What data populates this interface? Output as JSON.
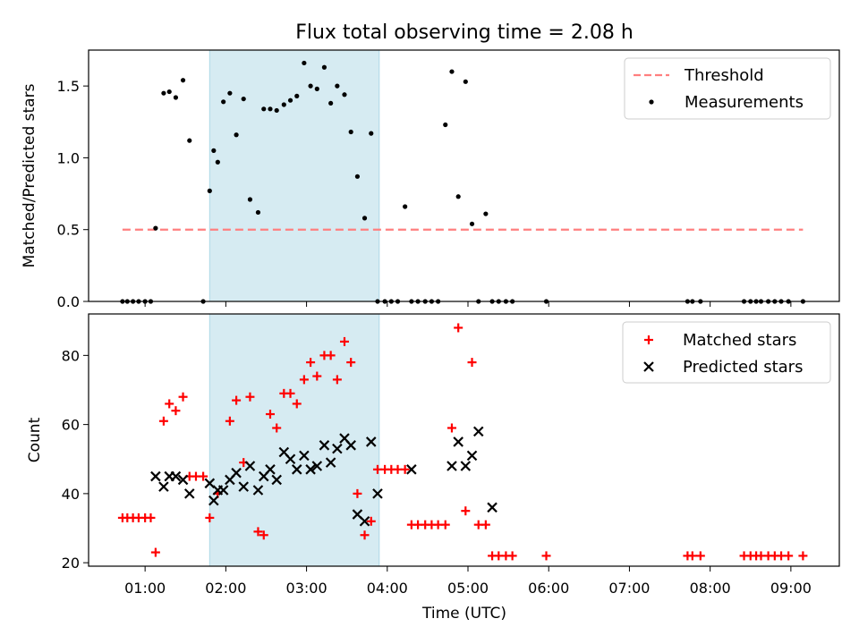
{
  "chart_data": [
    {
      "type": "scatter",
      "title": "Flux total observing time = 2.08 h",
      "xlabel": "",
      "ylabel": "Matched/Predicted stars",
      "xlim": [
        0.3,
        9.6
      ],
      "ylim": [
        0,
        1.75
      ],
      "yticks": [
        0.0,
        0.5,
        1.0,
        1.5
      ],
      "yticklabels": [
        "0.0",
        "0.5",
        "1.0",
        "1.5"
      ],
      "xticks": [
        1,
        2,
        3,
        4,
        5,
        6,
        7,
        8,
        9
      ],
      "shaded_interval": [
        1.8,
        3.9
      ],
      "shade_color": "#add8e6",
      "legend_position": "top-right",
      "threshold": {
        "name": "Threshold",
        "value": 0.5,
        "x": [
          0.72,
          9.15
        ],
        "color": "#ff7f7f"
      },
      "series": [
        {
          "name": "Measurements",
          "color": "#000000",
          "x": [
            0.72,
            0.78,
            0.85,
            0.92,
            1.0,
            1.07,
            1.13,
            1.23,
            1.3,
            1.38,
            1.47,
            1.55,
            1.72,
            1.8,
            1.85,
            1.9,
            1.97,
            2.05,
            2.13,
            2.22,
            2.3,
            2.4,
            2.47,
            2.55,
            2.63,
            2.72,
            2.8,
            2.88,
            2.97,
            3.05,
            3.13,
            3.22,
            3.3,
            3.38,
            3.47,
            3.55,
            3.63,
            3.72,
            3.8,
            3.88,
            3.97,
            4.05,
            4.13,
            4.22,
            4.3,
            4.38,
            4.47,
            4.55,
            4.63,
            4.72,
            4.8,
            4.88,
            4.97,
            5.05,
            5.13,
            5.22,
            5.3,
            5.38,
            5.47,
            5.55,
            5.97,
            7.72,
            7.78,
            7.88,
            8.42,
            8.5,
            8.57,
            8.63,
            8.72,
            8.8,
            8.88,
            8.97,
            9.15
          ],
          "y": [
            0,
            0,
            0,
            0,
            0,
            0,
            0.51,
            1.45,
            1.46,
            1.42,
            1.54,
            1.12,
            0,
            0.77,
            1.05,
            0.97,
            1.39,
            1.45,
            1.16,
            1.41,
            0.71,
            0.62,
            1.34,
            1.34,
            1.33,
            1.37,
            1.4,
            1.43,
            1.66,
            1.5,
            1.48,
            1.63,
            1.38,
            1.5,
            1.44,
            1.18,
            0.87,
            0.58,
            1.17,
            0,
            0,
            0,
            0,
            0.66,
            0,
            0,
            0,
            0,
            0,
            1.23,
            1.6,
            0.73,
            1.53,
            0.54,
            0,
            0.61,
            0,
            0,
            0,
            0,
            0,
            0,
            0,
            0,
            0,
            0,
            0,
            0,
            0,
            0,
            0,
            0,
            0
          ]
        }
      ]
    },
    {
      "type": "scatter",
      "title": "",
      "xlabel": "Time (UTC)",
      "ylabel": "Count",
      "xlim": [
        0.3,
        9.6
      ],
      "ylim": [
        19,
        92
      ],
      "yticks": [
        20,
        40,
        60,
        80
      ],
      "xticks": [
        1,
        2,
        3,
        4,
        5,
        6,
        7,
        8,
        9
      ],
      "xticklabels": [
        "01:00",
        "02:00",
        "03:00",
        "04:00",
        "05:00",
        "06:00",
        "07:00",
        "08:00",
        "09:00"
      ],
      "shaded_interval": [
        1.8,
        3.9
      ],
      "shade_color": "#add8e6",
      "legend_position": "top-right",
      "series": [
        {
          "name": "Matched stars",
          "color": "#ff0000",
          "marker": "plus",
          "x": [
            0.72,
            0.78,
            0.85,
            0.92,
            1.0,
            1.07,
            1.13,
            1.23,
            1.3,
            1.38,
            1.47,
            1.55,
            1.63,
            1.72,
            1.8,
            1.9,
            2.05,
            2.13,
            2.22,
            2.3,
            2.4,
            2.47,
            2.55,
            2.63,
            2.72,
            2.8,
            2.88,
            2.97,
            3.05,
            3.13,
            3.22,
            3.3,
            3.38,
            3.47,
            3.55,
            3.63,
            3.72,
            3.8,
            3.88,
            3.97,
            4.05,
            4.13,
            4.22,
            4.3,
            4.38,
            4.47,
            4.55,
            4.63,
            4.72,
            4.8,
            4.88,
            4.97,
            5.05,
            5.13,
            5.22,
            5.3,
            5.38,
            5.47,
            5.55,
            5.97,
            7.72,
            7.78,
            7.88,
            8.42,
            8.5,
            8.57,
            8.63,
            8.72,
            8.8,
            8.88,
            8.97,
            9.15
          ],
          "y": [
            33,
            33,
            33,
            33,
            33,
            33,
            23,
            61,
            66,
            64,
            68,
            45,
            45,
            45,
            33,
            40,
            61,
            67,
            49,
            68,
            29,
            28,
            63,
            59,
            69,
            69,
            66,
            73,
            78,
            74,
            80,
            80,
            73,
            84,
            78,
            40,
            28,
            32,
            47,
            47,
            47,
            47,
            47,
            31,
            31,
            31,
            31,
            31,
            31,
            59,
            88,
            35,
            78,
            31,
            31,
            22,
            22,
            22,
            22,
            22,
            22,
            22,
            22,
            22,
            22,
            22,
            22,
            22,
            22,
            22,
            22,
            22
          ]
        },
        {
          "name": "Predicted stars",
          "color": "#000000",
          "marker": "x",
          "x": [
            1.13,
            1.23,
            1.3,
            1.38,
            1.47,
            1.55,
            1.8,
            1.85,
            1.9,
            1.97,
            2.05,
            2.13,
            2.22,
            2.3,
            2.4,
            2.47,
            2.55,
            2.63,
            2.72,
            2.8,
            2.88,
            2.97,
            3.05,
            3.13,
            3.22,
            3.3,
            3.38,
            3.47,
            3.55,
            3.63,
            3.72,
            3.8,
            3.88,
            4.3,
            4.8,
            4.88,
            4.97,
            5.05,
            5.13,
            5.3
          ],
          "y": [
            45,
            42,
            45,
            45,
            44,
            40,
            43,
            38,
            41,
            41,
            44,
            46,
            42,
            48,
            41,
            45,
            47,
            44,
            52,
            50,
            47,
            51,
            47,
            48,
            54,
            49,
            53,
            56,
            54,
            34,
            32,
            55,
            40,
            47,
            48,
            55,
            48,
            51,
            58,
            36
          ]
        }
      ]
    }
  ]
}
